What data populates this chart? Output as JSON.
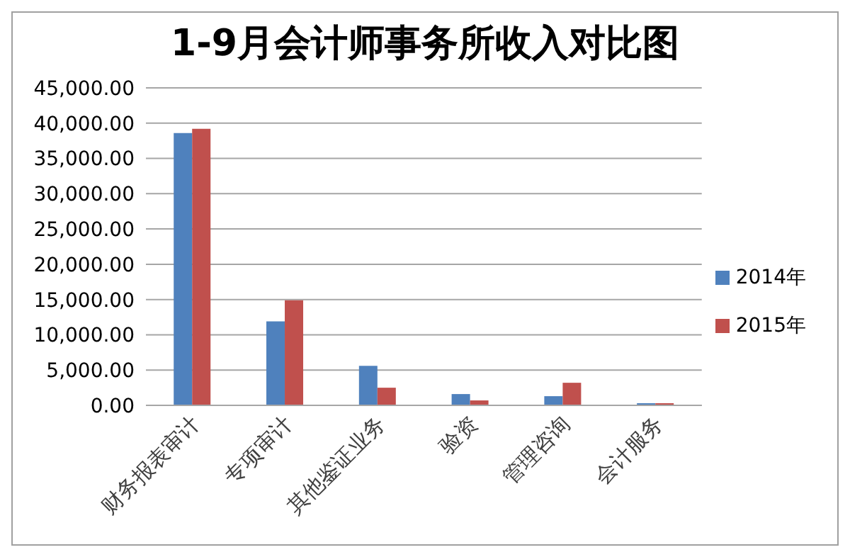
{
  "chart_data": {
    "type": "bar",
    "title": "1-9月会计师事务所收入对比图",
    "categories": [
      "财务报表审计",
      "专项审计",
      "其他鉴证业务",
      "验资",
      "管理咨询",
      "会计服务"
    ],
    "series": [
      {
        "name": "2014年",
        "color": "#4f81bd",
        "values": [
          38600,
          11900,
          5600,
          1600,
          1300,
          300
        ]
      },
      {
        "name": "2015年",
        "color": "#c0504d",
        "values": [
          39200,
          14900,
          2500,
          700,
          3200,
          300
        ]
      }
    ],
    "ylim": [
      0,
      45000
    ],
    "yticks": [
      {
        "value": 0,
        "label": "0.00"
      },
      {
        "value": 5000,
        "label": "5,000.00"
      },
      {
        "value": 10000,
        "label": "10,000.00"
      },
      {
        "value": 15000,
        "label": "15,000.00"
      },
      {
        "value": 20000,
        "label": "20,000.00"
      },
      {
        "value": 25000,
        "label": "25,000.00"
      },
      {
        "value": 30000,
        "label": "30,000.00"
      },
      {
        "value": 35000,
        "label": "35,000.00"
      },
      {
        "value": 40000,
        "label": "40,000.00"
      },
      {
        "value": 45000,
        "label": "45,000.00"
      }
    ],
    "grid": "y",
    "legend": "right"
  }
}
